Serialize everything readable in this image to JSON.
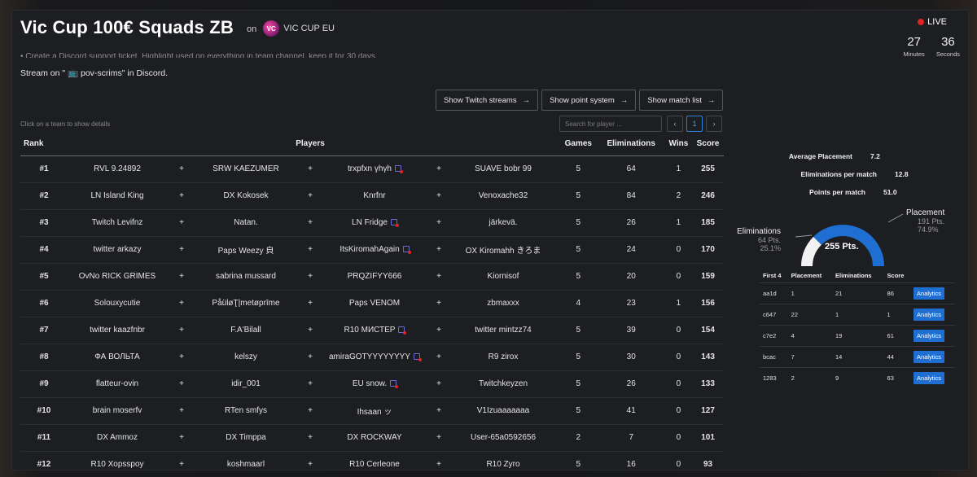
{
  "header": {
    "title": "Vic Cup 100€ Squads ZB",
    "on": "on",
    "org_logo": "VC",
    "org": "VIC CUP EU"
  },
  "live": {
    "label": "LIVE",
    "minutes": "27",
    "minutes_label": "Minutes",
    "seconds": "36",
    "seconds_label": "Seconds"
  },
  "description": {
    "clipped": "• Create a Discord support ticket, Highlight used on everything in team channel, keep it for 30 days",
    "stream_line": "Stream on \" 📺 pov-scrims\" in Discord."
  },
  "buttons": [
    {
      "label": "Show Twitch streams"
    },
    {
      "label": "Show point system"
    },
    {
      "label": "Show match list"
    }
  ],
  "hint": "Click on a team to show details",
  "search": {
    "placeholder": "Search for player ..."
  },
  "pagination": {
    "prev": "‹",
    "page": "1",
    "next": "›"
  },
  "leaderboard": {
    "columns": {
      "rank": "Rank",
      "players": "Players",
      "games": "Games",
      "eliminations": "Eliminations",
      "wins": "Wins",
      "score": "Score"
    },
    "rows": [
      {
        "rank": "#1",
        "p1": "RVL 9.24892",
        "p2": "SRW KAEZUMER",
        "p3": "trxpfxn γhγh",
        "p4": "SUAVE bobr 99",
        "games": "5",
        "elims": "64",
        "wins": "1",
        "score": "255"
      },
      {
        "rank": "#2",
        "p1": "LN Island King",
        "p2": "DX Kokosek",
        "p3": "Knrfnr",
        "p4": "Venoxache32",
        "games": "5",
        "elims": "84",
        "wins": "2",
        "score": "246"
      },
      {
        "rank": "#3",
        "p1": "Twitch Levifnz",
        "p2": "Natan.",
        "p3": "LN Fridge",
        "p4": "järkevä.",
        "games": "5",
        "elims": "26",
        "wins": "1",
        "score": "185"
      },
      {
        "rank": "#4",
        "p1": "twitter arkazy",
        "p2": "Paps Weezy 㒵",
        "p3": "ItsKiromahAgain",
        "p4": "OX Kiromahh きろま",
        "games": "5",
        "elims": "24",
        "wins": "0",
        "score": "170"
      },
      {
        "rank": "#5",
        "p1": "OvNo RICK GRIMES",
        "p2": "sabrina mussard",
        "p3": "PRQZIFYY666",
        "p4": "Kiornisof",
        "games": "5",
        "elims": "20",
        "wins": "0",
        "score": "159"
      },
      {
        "rank": "#6",
        "p1": "Solouxycutie",
        "p2": "PåüløŢ|metøprīme",
        "p3": "Paps VENOM",
        "p4": "zbmaxxx",
        "games": "4",
        "elims": "23",
        "wins": "1",
        "score": "156"
      },
      {
        "rank": "#7",
        "p1": "twitter kaazfnbr",
        "p2": "F.A'Bilall",
        "p3": "R10 МИСТЕР",
        "p4": "twitter mintzz74",
        "games": "5",
        "elims": "39",
        "wins": "0",
        "score": "154"
      },
      {
        "rank": "#8",
        "p1": "ФА ВОЛЬТА",
        "p2": "kelszy",
        "p3": "amiraGOTYYYYYYYY",
        "p4": "R9 zirox",
        "games": "5",
        "elims": "30",
        "wins": "0",
        "score": "143"
      },
      {
        "rank": "#9",
        "p1": "flatteur-ovin",
        "p2": "idir_001",
        "p3": "EU snow.",
        "p4": "Twitchkeyzen",
        "games": "5",
        "elims": "26",
        "wins": "0",
        "score": "133"
      },
      {
        "rank": "#10",
        "p1": "brain moserfv",
        "p2": "RTen smfys",
        "p3": "Ihsaan ッ",
        "p4": "V1Izuaaaaaaa",
        "games": "5",
        "elims": "41",
        "wins": "0",
        "score": "127"
      },
      {
        "rank": "#11",
        "p1": "DX Ammoz",
        "p2": "DX Timppa",
        "p3": "DX ROCKWAY",
        "p4": "User-65a0592656",
        "games": "2",
        "elims": "7",
        "wins": "0",
        "score": "101"
      },
      {
        "rank": "#12",
        "p1": "R10 Xopsspoy",
        "p2": "koshmaarl",
        "p3": "R10 Cerleone",
        "p4": "R10 Zyro",
        "games": "5",
        "elims": "16",
        "wins": "0",
        "score": "93"
      }
    ],
    "plus": "+"
  },
  "team_stats": {
    "avg_placement_label": "Average Placement",
    "avg_placement": "7.2",
    "elims_per_match_label": "Eliminations per match",
    "elims_per_match": "12.8",
    "points_per_match_label": "Points per match",
    "points_per_match": "51.0"
  },
  "points_breakdown": {
    "total": "255 Pts.",
    "eliminations_label": "Eliminations",
    "eliminations_pts": "64 Pts.",
    "eliminations_pct": "25.1%",
    "eliminations_fraction": 0.251,
    "placement_label": "Placement",
    "placement_pts": "191 Pts.",
    "placement_pct": "74.9%",
    "colors": {
      "placement": "#1e6fd1",
      "eliminations": "#f2f2f2"
    }
  },
  "matches": {
    "columns": {
      "first4": "First 4",
      "placement": "Placement",
      "eliminations": "Eliminations",
      "score": "Score"
    },
    "button_label": "Analytics",
    "rows": [
      {
        "id": "aa1d",
        "placement": "1",
        "elims": "21",
        "score": "86"
      },
      {
        "id": "c647",
        "placement": "22",
        "elims": "1",
        "score": "1"
      },
      {
        "id": "c7e2",
        "placement": "4",
        "elims": "19",
        "score": "61"
      },
      {
        "id": "bcac",
        "placement": "7",
        "elims": "14",
        "score": "44"
      },
      {
        "id": "1283",
        "placement": "2",
        "elims": "9",
        "score": "63"
      }
    ]
  },
  "stream_rows": [
    0,
    2,
    3,
    6,
    7,
    8
  ]
}
